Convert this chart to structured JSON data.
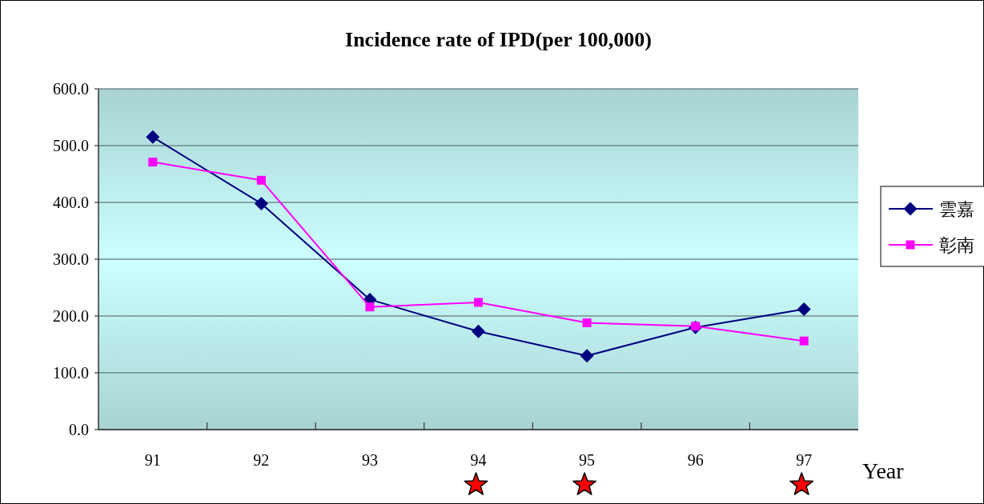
{
  "chart_data": {
    "type": "line",
    "title": "Incidence rate of IPD(per 100,000)",
    "xlabel": "Year",
    "categories": [
      "91",
      "92",
      "93",
      "94",
      "95",
      "96",
      "97"
    ],
    "series": [
      {
        "name": "雲嘉",
        "color": "#000080",
        "marker": "diamond",
        "values": [
          515,
          398,
          229,
          173,
          130,
          180,
          212
        ]
      },
      {
        "name": "彰南",
        "color": "#ff00ff",
        "marker": "square",
        "values": [
          471,
          439,
          216,
          224,
          188,
          182,
          156
        ]
      }
    ],
    "ylim": [
      0,
      600
    ],
    "yticks": [
      {
        "value": 0,
        "label": "0.0"
      },
      {
        "value": 100,
        "label": "100.0"
      },
      {
        "value": 200,
        "label": "200.0"
      },
      {
        "value": 300,
        "label": "300.0"
      },
      {
        "value": 400,
        "label": "400.0"
      },
      {
        "value": 500,
        "label": "500.0"
      },
      {
        "value": 600,
        "label": "600.0"
      }
    ],
    "grid": "y",
    "legend": "right"
  }
}
